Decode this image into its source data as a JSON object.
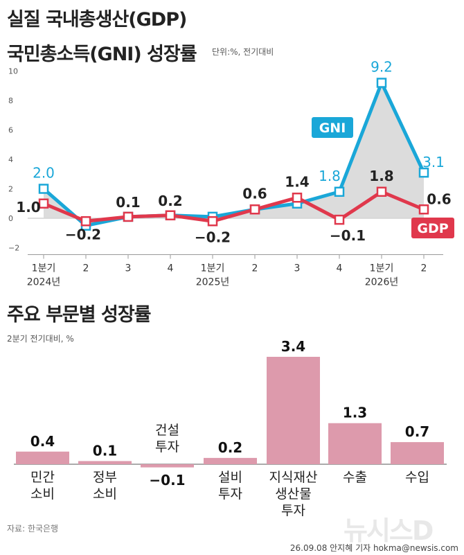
{
  "header": {
    "title_line1": "실질 국내총생산(GDP)",
    "title_line2": "국민총소득(GNI) 성장률",
    "unit": "단위:%, 전기대비"
  },
  "section2": {
    "title": "주요 부문별 성장률",
    "unit": "2분기 전기대비, %"
  },
  "footer": {
    "source": "자료: 한국은행",
    "credit": "26.09.08 안지혜 기자 hokma@newsis.com",
    "logo": "뉴시스D"
  },
  "colors": {
    "gni": "#1aa7d8",
    "gdp": "#e0384c",
    "area": "#d6d6d6",
    "bar": "#dd9aac"
  },
  "chart_data": [
    {
      "type": "line",
      "yticks": [
        "10",
        "8",
        "6",
        "4",
        "2",
        "0",
        "−2"
      ],
      "ylim": [
        -2,
        10
      ],
      "x_quarters": [
        "1분기",
        "2",
        "3",
        "4",
        "1분기",
        "2",
        "3",
        "4",
        "1분기",
        "2"
      ],
      "x_years": [
        "2024년",
        "",
        "",
        "",
        "2025년",
        "",
        "",
        "",
        "2026년",
        ""
      ],
      "series": [
        {
          "name": "GNI",
          "values": [
            2.0,
            -0.5,
            0.1,
            0.2,
            0.1,
            0.6,
            1.0,
            1.8,
            9.2,
            3.1
          ],
          "labels": [
            "2.0",
            "",
            "",
            "",
            "",
            "",
            "",
            "1.8",
            "9.2",
            "3.1"
          ]
        },
        {
          "name": "GDP",
          "values": [
            1.0,
            -0.2,
            0.1,
            0.2,
            -0.2,
            0.6,
            1.4,
            -0.1,
            1.8,
            0.6
          ],
          "labels": [
            "1.0",
            "−0.2",
            "0.1",
            "0.2",
            "−0.2",
            "0.6",
            "1.4",
            "−0.1",
            "1.8",
            "0.6"
          ]
        }
      ]
    },
    {
      "type": "bar",
      "categories": [
        "민간\n소비",
        "정부\n소비",
        "건설\n투자",
        "설비\n투자",
        "지식재산\n생산물\n투자",
        "수출",
        "수입"
      ],
      "values": [
        0.4,
        0.1,
        -0.1,
        0.2,
        3.4,
        1.3,
        0.7
      ],
      "labels": [
        "0.4",
        "0.1",
        "−0.1",
        "0.2",
        "3.4",
        "1.3",
        "0.7"
      ]
    }
  ]
}
